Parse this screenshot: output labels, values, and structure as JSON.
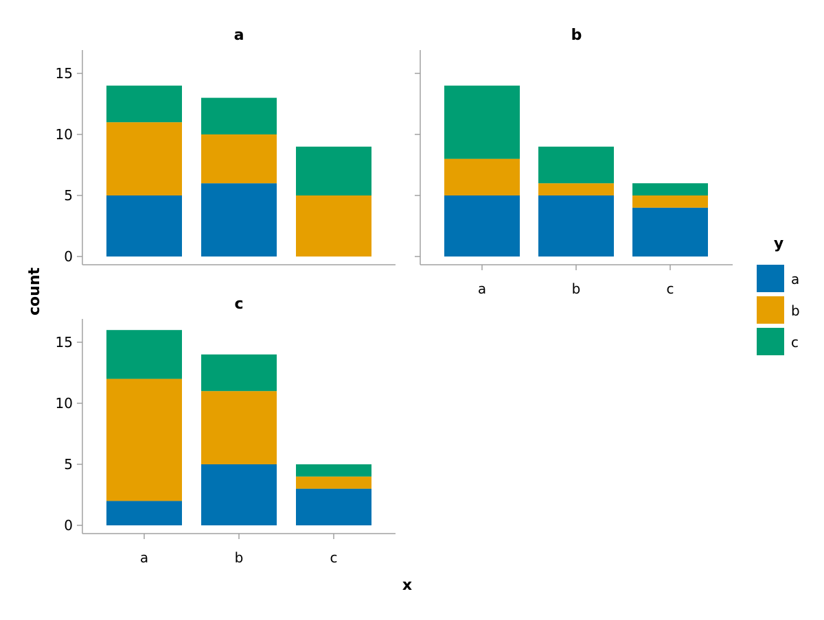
{
  "chart_data": {
    "type": "bar",
    "stacked": true,
    "xlabel": "x",
    "ylabel": "count",
    "ylim": [
      0,
      17
    ],
    "yticks": [
      0,
      5,
      10,
      15
    ],
    "categories": [
      "a",
      "b",
      "c"
    ],
    "legend": {
      "title": "y",
      "placement": "right",
      "entries": [
        {
          "label": "a",
          "color": "#0072b2"
        },
        {
          "label": "b",
          "color": "#e69f00"
        },
        {
          "label": "c",
          "color": "#009e73"
        }
      ]
    },
    "facets": [
      {
        "title": "a",
        "series": [
          {
            "name": "a",
            "values": [
              5,
              6,
              0
            ]
          },
          {
            "name": "b",
            "values": [
              6,
              4,
              5
            ]
          },
          {
            "name": "c",
            "values": [
              3,
              3,
              4
            ]
          }
        ]
      },
      {
        "title": "b",
        "series": [
          {
            "name": "a",
            "values": [
              5,
              5,
              4
            ]
          },
          {
            "name": "b",
            "values": [
              3,
              1,
              1
            ]
          },
          {
            "name": "c",
            "values": [
              6,
              3,
              1
            ]
          }
        ]
      },
      {
        "title": "c",
        "series": [
          {
            "name": "a",
            "values": [
              2,
              5,
              3
            ]
          },
          {
            "name": "b",
            "values": [
              10,
              6,
              1
            ]
          },
          {
            "name": "c",
            "values": [
              4,
              3,
              1
            ]
          }
        ]
      }
    ]
  }
}
